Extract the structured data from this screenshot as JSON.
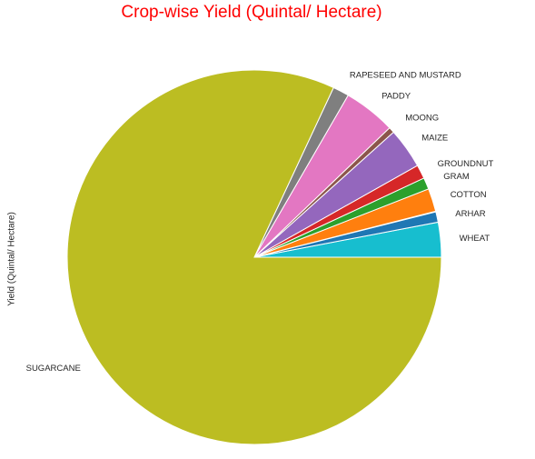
{
  "chart_data": {
    "type": "pie",
    "title": "Crop-wise Yield (Quintal/ Hectare)",
    "ylabel": "Yield (Quintal/ Hectare)",
    "slices": [
      {
        "label": "WHEAT",
        "value": 3.0,
        "color": "#17becf"
      },
      {
        "label": "ARHAR",
        "value": 0.9,
        "color": "#1f77b4"
      },
      {
        "label": "",
        "value": 0.05,
        "color": "#d62728"
      },
      {
        "label": "COTTON",
        "value": 2.0,
        "color": "#ff7f0e"
      },
      {
        "label": "GRAM",
        "value": 1.0,
        "color": "#2ca02c"
      },
      {
        "label": "GROUNDNUT",
        "value": 1.2,
        "color": "#d62728"
      },
      {
        "label": "MAIZE",
        "value": 3.5,
        "color": "#9467bd"
      },
      {
        "label": "MOONG",
        "value": 0.5,
        "color": "#8c564b"
      },
      {
        "label": "PADDY",
        "value": 4.5,
        "color": "#e377c2"
      },
      {
        "label": "RAPESEED AND MUSTARD",
        "value": 1.4,
        "color": "#7f7f7f"
      },
      {
        "label": "SUGARCANE",
        "value": 82.0,
        "color": "#bcbd22"
      }
    ],
    "start_angle_deg": 0,
    "direction": "counterclockwise",
    "legend": "none"
  }
}
